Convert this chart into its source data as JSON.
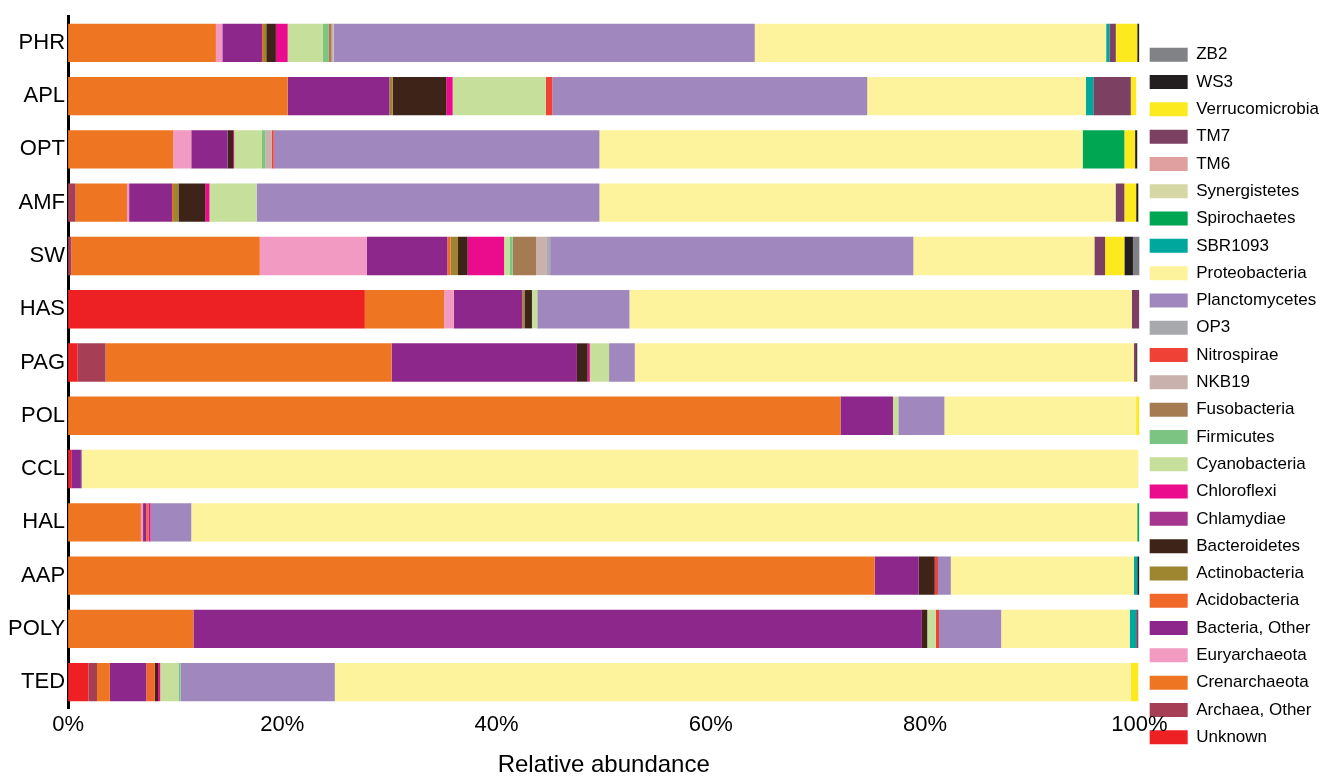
{
  "chart_data": {
    "type": "bar",
    "orientation": "horizontal",
    "stacked": true,
    "xlabel": "Relative abundance",
    "categories": [
      "PHR",
      "APL",
      "OPT",
      "AMF",
      "SW",
      "HAS",
      "PAG",
      "POL",
      "CCL",
      "HAL",
      "AAP",
      "POLY",
      "TED"
    ],
    "xlim": [
      0,
      100
    ],
    "xticks": [
      {
        "value": 0,
        "label": "0%"
      },
      {
        "value": 20,
        "label": "20%"
      },
      {
        "value": 40,
        "label": "40%"
      },
      {
        "value": 60,
        "label": "60%"
      },
      {
        "value": 80,
        "label": "80%"
      },
      {
        "value": 100,
        "label": "100%"
      }
    ],
    "grid": false,
    "legend": "right",
    "series": [
      {
        "name": "Unknown",
        "color": "#ed2024",
        "values": [
          0,
          null,
          0,
          0,
          0,
          27.7,
          0.9,
          0,
          0.3,
          0,
          0,
          0,
          1.9
        ]
      },
      {
        "name": "Archaea, Other",
        "color": "#a63f55",
        "values": [
          0,
          0,
          0,
          0.7,
          0.3,
          0,
          2.6,
          0,
          0,
          0,
          0,
          0,
          0.8
        ]
      },
      {
        "name": "Crenarchaeota",
        "color": "#ee7623",
        "values": [
          13.8,
          20.5,
          9.8,
          4.8,
          17.6,
          7.4,
          26.7,
          72.1,
          0,
          6.8,
          75.3,
          11.7,
          1.2
        ]
      },
      {
        "name": "Euryarchaeota",
        "color": "#f29ac1",
        "values": [
          0.6,
          0,
          1.7,
          0.2,
          10.0,
          0.9,
          0,
          0,
          0,
          0.2,
          0,
          0,
          0
        ]
      },
      {
        "name": "Bacteria, Other",
        "color": "#8e278b",
        "values": [
          3.7,
          9.5,
          3.4,
          4.0,
          7.5,
          6.4,
          17.3,
          4.9,
          0.9,
          0.3,
          4.1,
          68.0,
          3.4
        ]
      },
      {
        "name": "Acidobacteria",
        "color": "#f0682a",
        "values": [
          0.1,
          0,
          0,
          0.1,
          0.3,
          0,
          0,
          0,
          0,
          0.2,
          0,
          0,
          0.8
        ]
      },
      {
        "name": "Actinobacteria",
        "color": "#9e8630",
        "values": [
          0.3,
          0.3,
          0,
          0.5,
          0.7,
          0.2,
          0,
          0,
          0,
          0,
          0,
          0,
          0
        ]
      },
      {
        "name": "Bacteroidetes",
        "color": "#3e2418",
        "values": [
          0.9,
          5.0,
          0.5,
          2.5,
          0.9,
          0.7,
          1.0,
          0,
          0,
          0,
          1.5,
          0.5,
          0.3
        ]
      },
      {
        "name": "Chlamydiae",
        "color": "#a6358f",
        "values": [
          0,
          0,
          0,
          0,
          0,
          0,
          0,
          0,
          0,
          0,
          0,
          0,
          0
        ]
      },
      {
        "name": "Chloroflexi",
        "color": "#ea0c8c",
        "values": [
          1.1,
          0.6,
          0.1,
          0.4,
          3.4,
          0,
          0.2,
          0,
          0,
          0.2,
          0,
          0,
          0.2
        ]
      },
      {
        "name": "Cyanobacteria",
        "color": "#c6df9a",
        "values": [
          3.3,
          8.7,
          2.6,
          4.4,
          0.5,
          0.5,
          1.8,
          0.5,
          0,
          0,
          0,
          0.8,
          1.7
        ]
      },
      {
        "name": "Firmicutes",
        "color": "#7cc482",
        "values": [
          0.5,
          0,
          0.3,
          0,
          0.3,
          0,
          0,
          0,
          0,
          0,
          0,
          0,
          0.2
        ]
      },
      {
        "name": "Fusobacteria",
        "color": "#a57b52",
        "values": [
          0.3,
          0,
          0,
          0,
          2.2,
          0,
          0,
          0,
          0,
          0,
          0,
          0,
          0
        ]
      },
      {
        "name": "NKB19",
        "color": "#c9b1ae",
        "values": [
          0.2,
          0,
          0.6,
          0,
          1.0,
          0,
          0,
          0,
          0,
          0,
          0,
          0,
          0
        ]
      },
      {
        "name": "Nitrospirae",
        "color": "#ef4136",
        "values": [
          0,
          0.6,
          0.2,
          0,
          0,
          0,
          0,
          0,
          0,
          0,
          0.3,
          0.3,
          0
        ]
      },
      {
        "name": "OP3",
        "color": "#a7a9ac",
        "values": [
          0,
          0,
          0,
          0,
          0.3,
          0,
          0,
          0,
          0,
          0,
          0,
          0,
          0
        ]
      },
      {
        "name": "Planctomycetes",
        "color": "#a087bd",
        "values": [
          39.3,
          29.4,
          30.4,
          32.0,
          33.9,
          8.6,
          2.4,
          4.3,
          0.1,
          3.8,
          1.2,
          5.8,
          14.4
        ]
      },
      {
        "name": "Proteobacteria",
        "color": "#fdf39c",
        "values": [
          32.8,
          20.4,
          45.1,
          48.1,
          16.9,
          46.9,
          46.6,
          17.9,
          98.6,
          88.3,
          17.1,
          12.0,
          74.3
        ]
      },
      {
        "name": "SBR1093",
        "color": "#00a79d",
        "values": [
          0.3,
          0.7,
          0,
          0,
          0,
          0,
          0,
          0,
          0,
          0,
          0.3,
          0.6,
          0
        ]
      },
      {
        "name": "Spirochaetes",
        "color": "#00a651",
        "values": [
          0,
          0,
          3.9,
          0,
          0,
          0,
          0,
          0,
          0,
          0.2,
          0,
          0,
          0
        ]
      },
      {
        "name": "Synergistetes",
        "color": "#d5d7a4",
        "values": [
          0,
          0,
          0,
          0.1,
          0,
          0,
          0,
          0,
          0,
          0,
          0,
          0,
          0
        ]
      },
      {
        "name": "TM6",
        "color": "#e0a0a0",
        "values": [
          0,
          0,
          0,
          0,
          0,
          0,
          0,
          0,
          0,
          0,
          0,
          0,
          0
        ]
      },
      {
        "name": "TM7",
        "color": "#7b4062",
        "values": [
          0.6,
          3.5,
          0,
          0.8,
          1.0,
          0.7,
          0.2,
          0,
          0,
          0,
          0,
          0.2,
          0
        ]
      },
      {
        "name": "Verrucomicrobia",
        "color": "#fcea1e",
        "values": [
          2.0,
          0.5,
          1.0,
          1.1,
          1.8,
          0,
          0,
          0.3,
          0,
          0,
          0,
          0,
          0.7
        ]
      },
      {
        "name": "WS3",
        "color": "#231f20",
        "values": [
          0.2,
          null,
          0.2,
          0.2,
          0.8,
          0,
          0.1,
          0,
          null,
          0,
          0.2,
          0,
          0
        ]
      },
      {
        "name": "ZB2",
        "color": "#808285",
        "values": [
          0,
          0,
          0,
          0,
          0.8,
          0,
          0,
          0,
          0,
          0,
          0,
          0,
          0
        ]
      }
    ]
  }
}
